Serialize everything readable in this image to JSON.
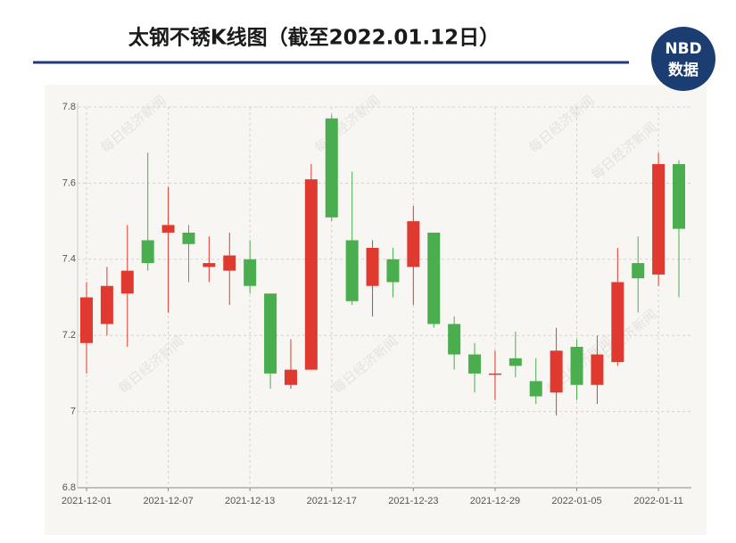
{
  "chart_data": {
    "type": "candlestick",
    "title": "太钢不锈K线图（截至2022.01.12日）",
    "logo": {
      "top": "NBD",
      "bottom": "数据"
    },
    "watermark": "每日经济新闻",
    "categories": [
      "2021-12-01",
      null,
      null,
      null,
      "2021-12-07",
      null,
      null,
      null,
      "2021-12-13",
      null,
      null,
      null,
      "2021-12-17",
      null,
      null,
      null,
      "2021-12-23",
      null,
      null,
      null,
      "2021-12-29",
      null,
      null,
      null,
      "2022-01-05",
      null,
      null,
      null,
      "2022-01-11",
      null
    ],
    "open": [
      7.18,
      7.23,
      7.31,
      7.45,
      7.47,
      7.47,
      7.38,
      7.37,
      7.4,
      7.31,
      7.07,
      7.11,
      7.77,
      7.45,
      7.33,
      7.4,
      7.38,
      7.47,
      7.23,
      7.15,
      7.1,
      7.14,
      7.08,
      7.05,
      7.17,
      7.07,
      7.13,
      7.39,
      7.36,
      7.65
    ],
    "high": [
      7.34,
      7.38,
      7.49,
      7.68,
      7.59,
      7.49,
      7.46,
      7.47,
      7.45,
      7.31,
      7.19,
      7.65,
      7.78,
      7.63,
      7.45,
      7.43,
      7.54,
      7.47,
      7.25,
      7.18,
      7.16,
      7.21,
      7.14,
      7.22,
      7.19,
      7.2,
      7.43,
      7.46,
      7.68,
      7.66
    ],
    "low": [
      7.1,
      7.2,
      7.17,
      7.37,
      7.26,
      7.34,
      7.34,
      7.28,
      7.31,
      7.06,
      7.06,
      7.11,
      7.5,
      7.28,
      7.25,
      7.3,
      7.28,
      7.22,
      7.11,
      7.05,
      7.03,
      7.09,
      7.02,
      6.99,
      7.03,
      7.02,
      7.12,
      7.26,
      7.33,
      7.3
    ],
    "close": [
      7.3,
      7.33,
      7.37,
      7.39,
      7.49,
      7.44,
      7.39,
      7.41,
      7.33,
      7.1,
      7.11,
      7.61,
      7.51,
      7.29,
      7.43,
      7.34,
      7.5,
      7.23,
      7.15,
      7.1,
      7.1,
      7.12,
      7.04,
      7.16,
      7.07,
      7.15,
      7.34,
      7.35,
      7.65,
      7.48
    ],
    "up_color": "#e0392f",
    "down_color": "#4aad4e",
    "ylim": [
      6.8,
      7.8
    ],
    "yticks": [
      6.8,
      7,
      7.2,
      7.4,
      7.6,
      7.8
    ],
    "grid": true
  }
}
